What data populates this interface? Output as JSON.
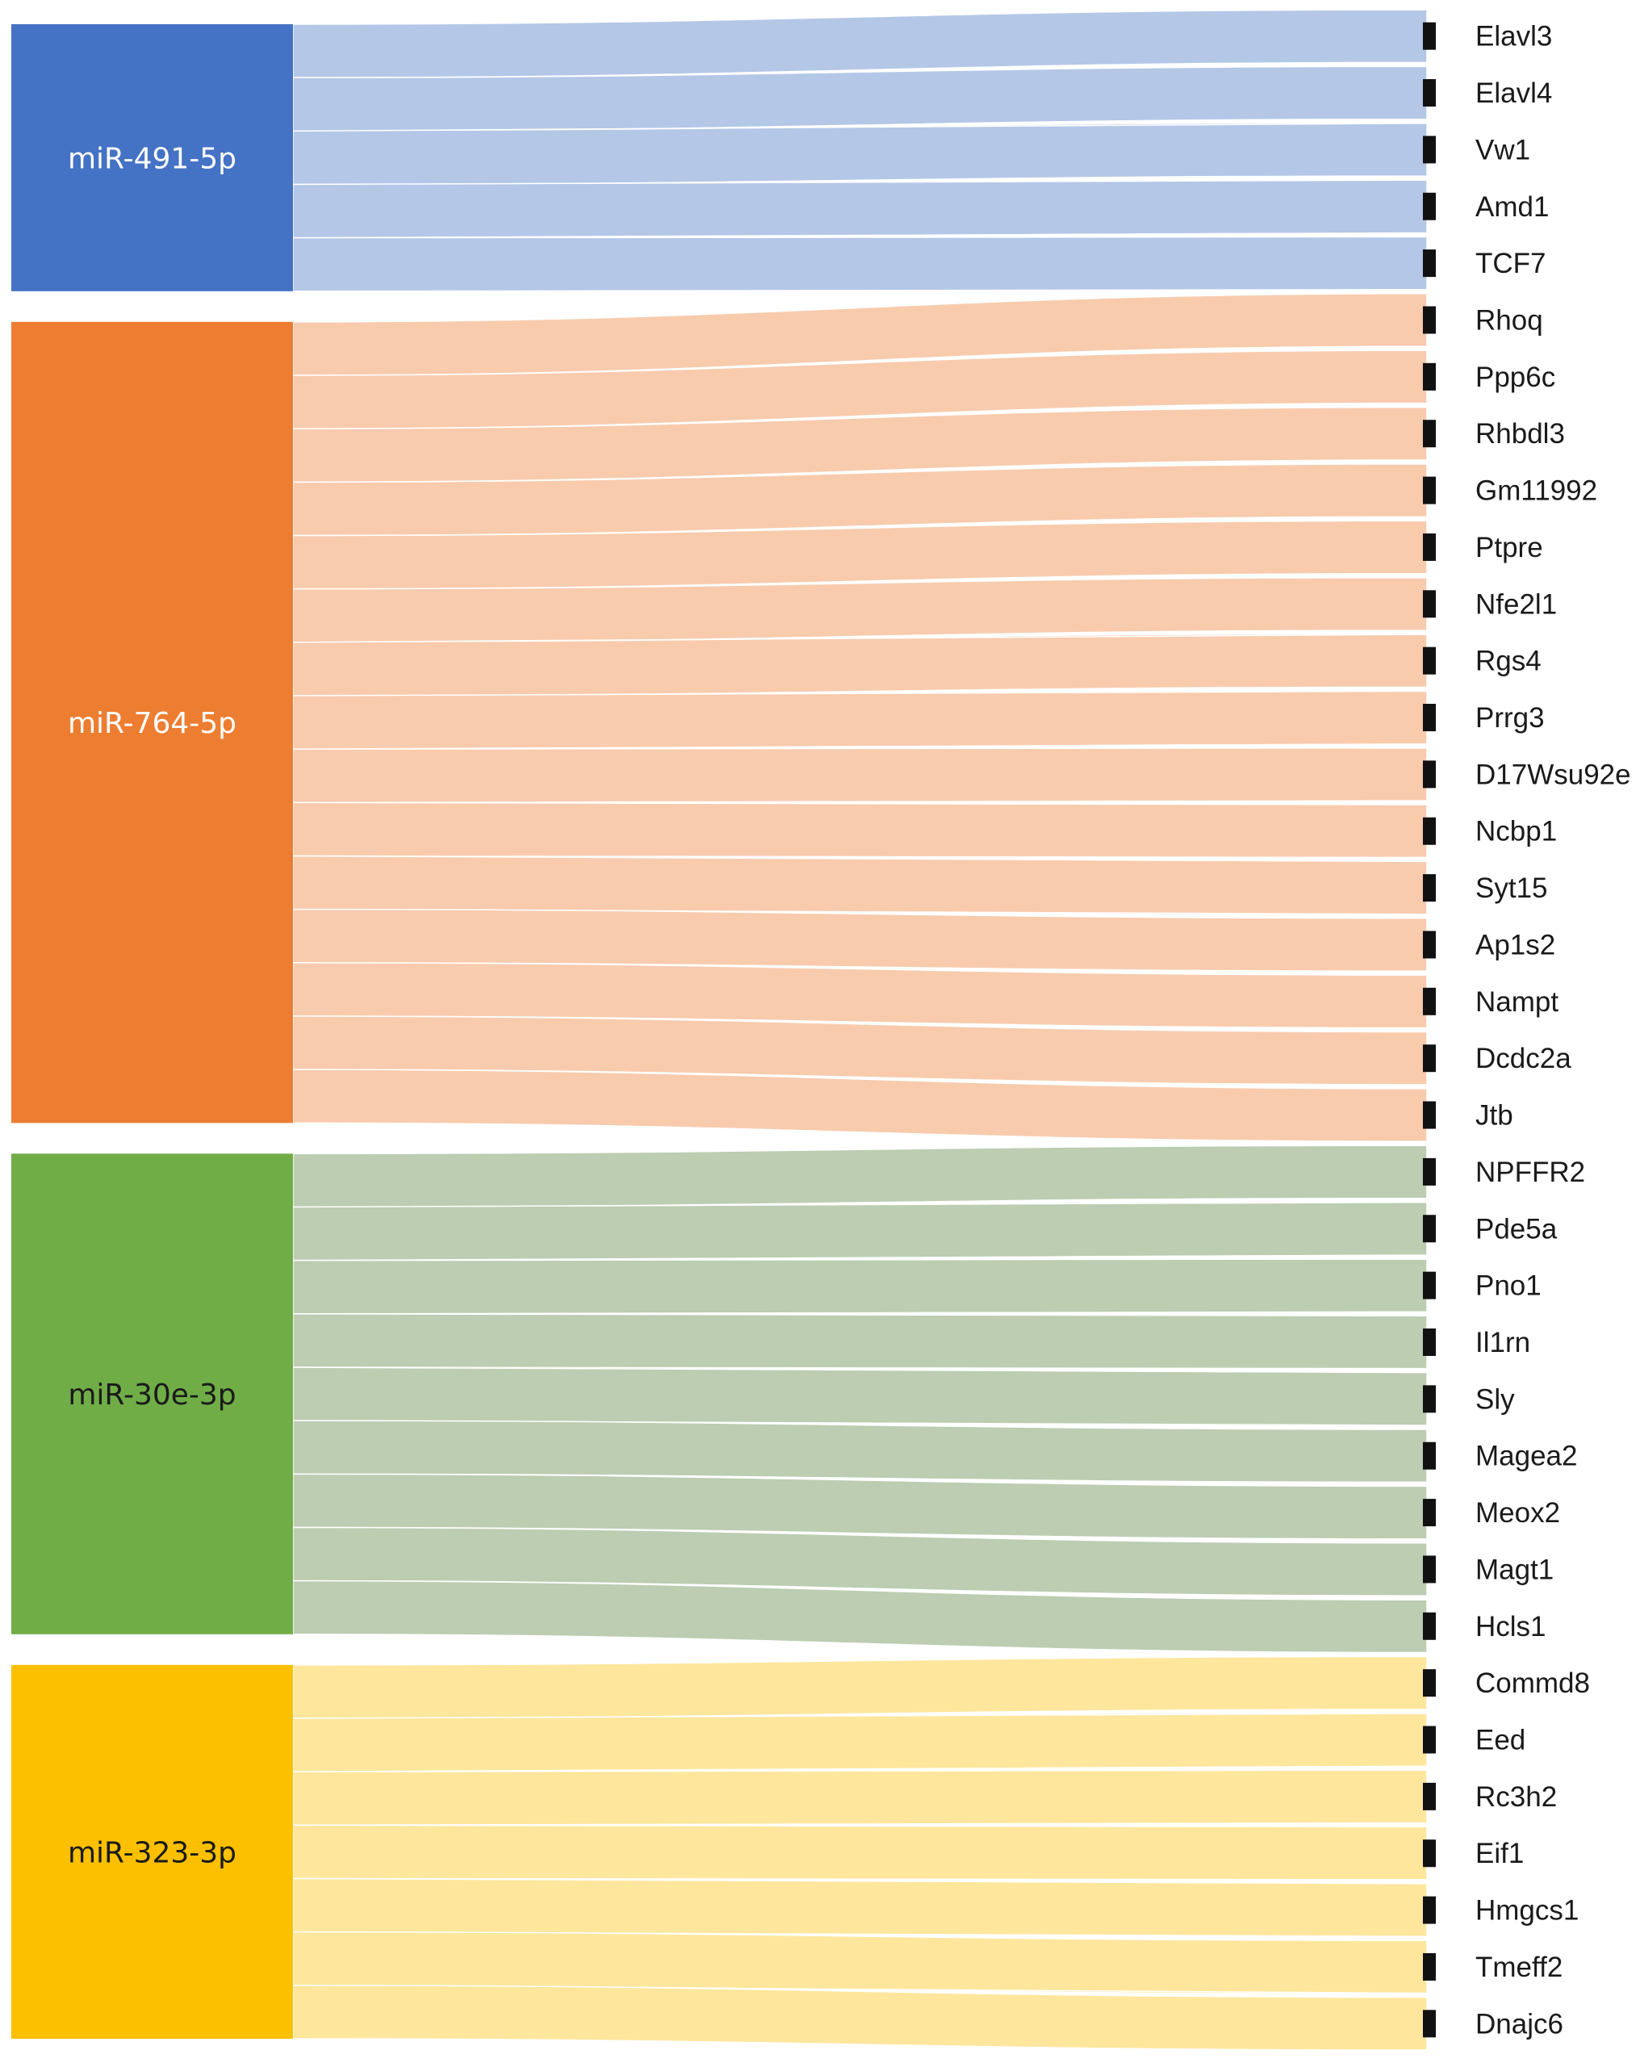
{
  "colors": {
    "marker": "#111111",
    "gap": "#ffffff"
  },
  "sources": [
    {
      "label": "miR-491-5p",
      "color": "#4472c4",
      "flow_color": "#b4c7e7",
      "label_color": "#ffffff",
      "targets": [
        "Elavl3",
        "Elavl4",
        "Vw1",
        "Amd1",
        "TCF7"
      ]
    },
    {
      "label": "miR-764-5p",
      "color": "#ed7d31",
      "flow_color": "#f8cbad",
      "label_color": "#ffffff",
      "targets": [
        "Rhoq",
        "Ppp6c",
        "Rhbdl3",
        "Gm11992",
        "Ptpre",
        "Nfe2l1",
        "Rgs4",
        "Prrg3",
        "D17Wsu92e",
        "Ncbp1",
        "Syt15",
        "Ap1s2",
        "Nampt",
        "Dcdc2a",
        "Jtb"
      ]
    },
    {
      "label": "miR-30e-3p",
      "color": "#70ad47",
      "flow_color": "#bccdb2",
      "label_color": "#1a1a1a",
      "targets": [
        "NPFFR2",
        "Pde5a",
        "Pno1",
        "Il1rn",
        "Sly",
        "Magea2",
        "Meox2",
        "Magt1",
        "Hcls1"
      ]
    },
    {
      "label": "miR-323-3p",
      "color": "#fcc000",
      "flow_color": "#fee69c",
      "label_color": "#1a1a1a",
      "targets": [
        "Commd8",
        "Eed",
        "Rc3h2",
        "Eif1",
        "Hmgcs1",
        "Tmeff2",
        "Dnajc6"
      ]
    }
  ]
}
